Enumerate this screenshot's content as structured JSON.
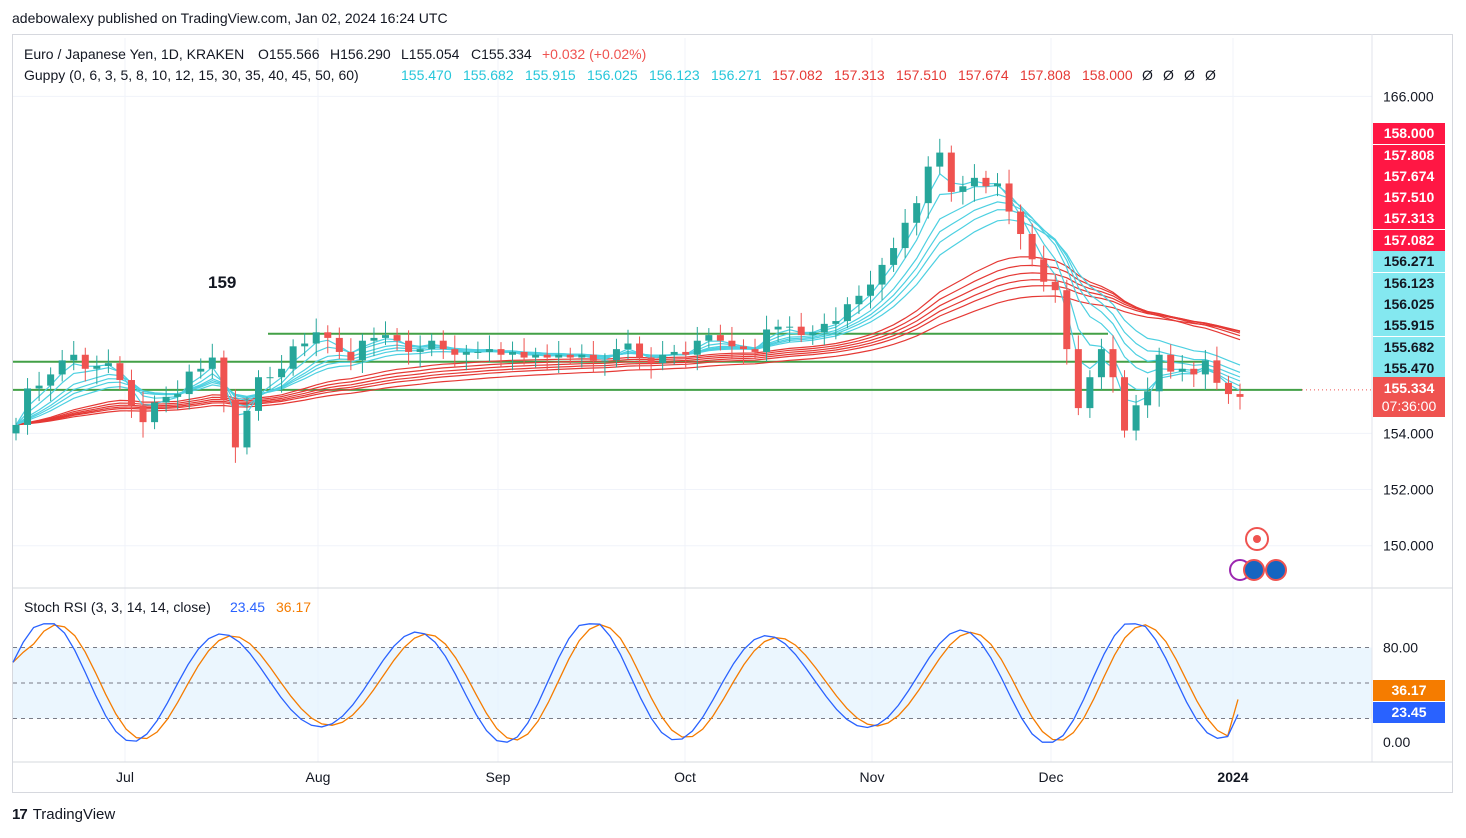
{
  "header": {
    "published": "adebowalexy published on TradingView.com, Jan 02, 2024 16:24 UTC"
  },
  "legend": {
    "symbol": "Euro / Japanese Yen, 1D, KRAKEN",
    "ohlc": {
      "o": "O155.566",
      "h": "H156.290",
      "l": "L155.054",
      "c": "C155.334",
      "chg": "+0.032 (+0.02%)"
    },
    "guppy_label": "Guppy (0, 6, 3, 5, 8, 10, 12, 15, 30, 35, 40, 45, 50, 60)",
    "guppy_fast": [
      "155.470",
      "155.682",
      "155.915",
      "156.025",
      "156.123",
      "156.271"
    ],
    "guppy_slow": [
      "157.082",
      "157.313",
      "157.510",
      "157.674",
      "157.808",
      "158.000"
    ],
    "guppy_empty": [
      "Ø",
      "Ø",
      "Ø",
      "Ø"
    ],
    "stoch_label": "Stoch RSI (3, 3, 14, 14, close)",
    "stoch_k": "23.45",
    "stoch_d": "36.17"
  },
  "annotation": {
    "text": "159"
  },
  "price_badges": {
    "slow": [
      "158.000",
      "157.808",
      "157.674",
      "157.510",
      "157.313",
      "157.082"
    ],
    "fast": [
      "156.271",
      "156.123",
      "156.025",
      "155.915",
      "155.682",
      "155.470"
    ],
    "last_price": "155.334",
    "countdown": "07:36:00",
    "stoch_d": "36.17",
    "stoch_k": "23.45"
  },
  "colors": {
    "up": "#26a69a",
    "down": "#ef5350",
    "fast": "#4dd0e1",
    "slow": "#e53935",
    "stoch_k": "#2962ff",
    "stoch_d": "#f57c00",
    "level": "#43a047"
  },
  "footer": {
    "brand": "TradingView",
    "logo": "17"
  },
  "chart_data": [
    {
      "type": "candlestick",
      "title": "Euro / Japanese Yen, 1D, KRAKEN",
      "x_ticks": [
        "Jul",
        "Aug",
        "Sep",
        "Oct",
        "Nov",
        "Dec",
        "2024"
      ],
      "y_ticks": [
        "166.000",
        "154.000",
        "152.000",
        "150.000"
      ],
      "ylim": [
        148.6,
        166.3
      ],
      "guppy_fast_last": [
        155.47,
        155.682,
        155.915,
        156.025,
        156.123,
        156.271
      ],
      "guppy_slow_last": [
        157.082,
        157.313,
        157.51,
        157.674,
        157.808,
        158.0
      ],
      "levels": [
        155.55,
        156.55,
        157.55
      ],
      "close_path": [
        154.3,
        155.6,
        155.7,
        156.1,
        156.6,
        156.8,
        156.3,
        156.4,
        156.5,
        155.9,
        155.0,
        154.4,
        155.1,
        155.3,
        155.4,
        156.2,
        156.3,
        156.7,
        155.2,
        153.5,
        154.8,
        156.0,
        156.0,
        156.3,
        157.1,
        157.2,
        157.6,
        157.4,
        156.9,
        156.6,
        157.3,
        157.4,
        157.5,
        157.3,
        156.9,
        157.0,
        157.3,
        157.0,
        156.8,
        156.9,
        156.9,
        157.0,
        156.8,
        156.9,
        156.7,
        156.8,
        156.7,
        156.8,
        156.7,
        156.8,
        156.6,
        156.6,
        157.0,
        157.2,
        156.7,
        156.5,
        156.8,
        156.9,
        156.8,
        157.3,
        157.5,
        157.3,
        157.1,
        157.0,
        156.9,
        157.7,
        157.8,
        157.8,
        157.5,
        157.6,
        157.9,
        158.0,
        158.6,
        158.9,
        159.3,
        160.0,
        160.6,
        161.5,
        162.2,
        163.5,
        164.0,
        162.6,
        162.8,
        163.1,
        162.8,
        162.9,
        161.9,
        161.1,
        160.2,
        159.4,
        159.1,
        157.0,
        154.9,
        156.0,
        157.0,
        156.0,
        154.1,
        155.0,
        155.5,
        156.8,
        156.2,
        156.3,
        156.1,
        156.6,
        155.8,
        155.4,
        155.3
      ],
      "stoch_rsi": {
        "k_last": 23.45,
        "d_last": 36.17,
        "levels": [
          20,
          50,
          80
        ],
        "y_ticks": [
          "80.00",
          "0.00"
        ]
      }
    }
  ]
}
